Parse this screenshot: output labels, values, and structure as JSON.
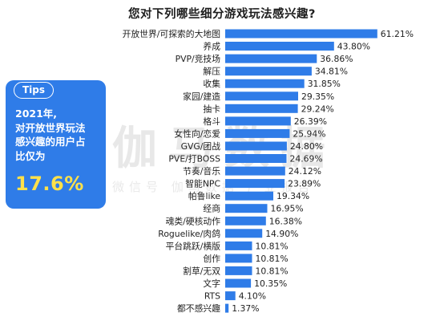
{
  "title": "您对下列哪些细分游戏玩法感兴趣?",
  "tips": {
    "tag": "Tips",
    "line1": "2021年,",
    "line2": "对开放世界玩法",
    "line3": "感兴趣的用户占",
    "line4": "比仅为",
    "highlight": "17.6%"
  },
  "watermark": {
    "big": "伽马数据",
    "small": "微信号 伽马数据 产业报告"
  },
  "colors": {
    "bar": "#2f7ce8",
    "tips_bg": "#2f7ce8",
    "highlight": "#ffe14a"
  },
  "chart_data": {
    "type": "bar",
    "orientation": "horizontal",
    "title": "您对下列哪些细分游戏玩法感兴趣?",
    "categories": [
      "开放世界/可探索的大地图",
      "养成",
      "PVP/竞技场",
      "解压",
      "收集",
      "家园/建造",
      "抽卡",
      "格斗",
      "女性向/恋爱",
      "GVG/团战",
      "PVE/打BOSS",
      "节奏/音乐",
      "智能NPC",
      "帕鲁like",
      "经商",
      "魂类/硬核动作",
      "Roguelike/肉鸽",
      "平台跳跃/横版",
      "创作",
      "割草/无双",
      "文字",
      "RTS",
      "都不感兴趣"
    ],
    "values": [
      61.21,
      43.8,
      36.86,
      34.81,
      31.85,
      29.35,
      29.24,
      26.39,
      25.94,
      24.8,
      24.69,
      24.12,
      23.89,
      19.34,
      16.95,
      16.38,
      14.9,
      10.81,
      10.81,
      10.81,
      10.35,
      4.1,
      1.37
    ],
    "value_labels": [
      "61.21%",
      "43.80%",
      "36.86%",
      "34.81%",
      "31.85%",
      "29.35%",
      "29.24%",
      "26.39%",
      "25.94%",
      "24.80%",
      "24.69%",
      "24.12%",
      "23.89%",
      "19.34%",
      "16.95%",
      "16.38%",
      "14.90%",
      "10.81%",
      "10.81%",
      "10.81%",
      "10.35%",
      "4.10%",
      "1.37%"
    ],
    "unit": "%",
    "grid": false,
    "legend": "none"
  }
}
